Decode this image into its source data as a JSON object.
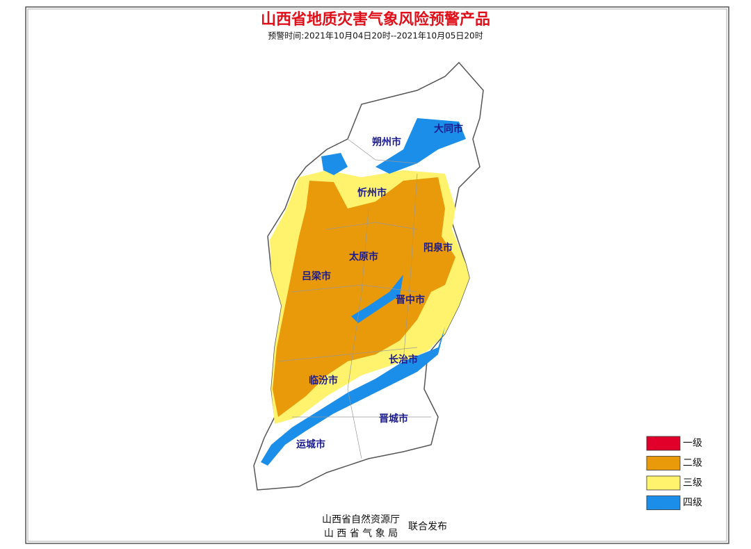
{
  "header": {
    "title": "山西省地质灾害气象风险预警产品",
    "subtitle": "预警时间:2021年10月04日20时--2021年10月05日20时"
  },
  "cities": [
    "朔州市",
    "大同市",
    "忻州市",
    "阳泉市",
    "太原市",
    "吕梁市",
    "晋中市",
    "长治市",
    "临汾市",
    "晋城市",
    "运城市"
  ],
  "legend": [
    {
      "label": "一级",
      "color": "#e0002a"
    },
    {
      "label": "二级",
      "color": "#e89a0a"
    },
    {
      "label": "三级",
      "color": "#fff36e"
    },
    {
      "label": "四级",
      "color": "#1a8ee8"
    }
  ],
  "footer": {
    "issuers": [
      "山西省自然资源厅",
      "山 西 省 气 象 局"
    ],
    "note": "联合发布"
  }
}
